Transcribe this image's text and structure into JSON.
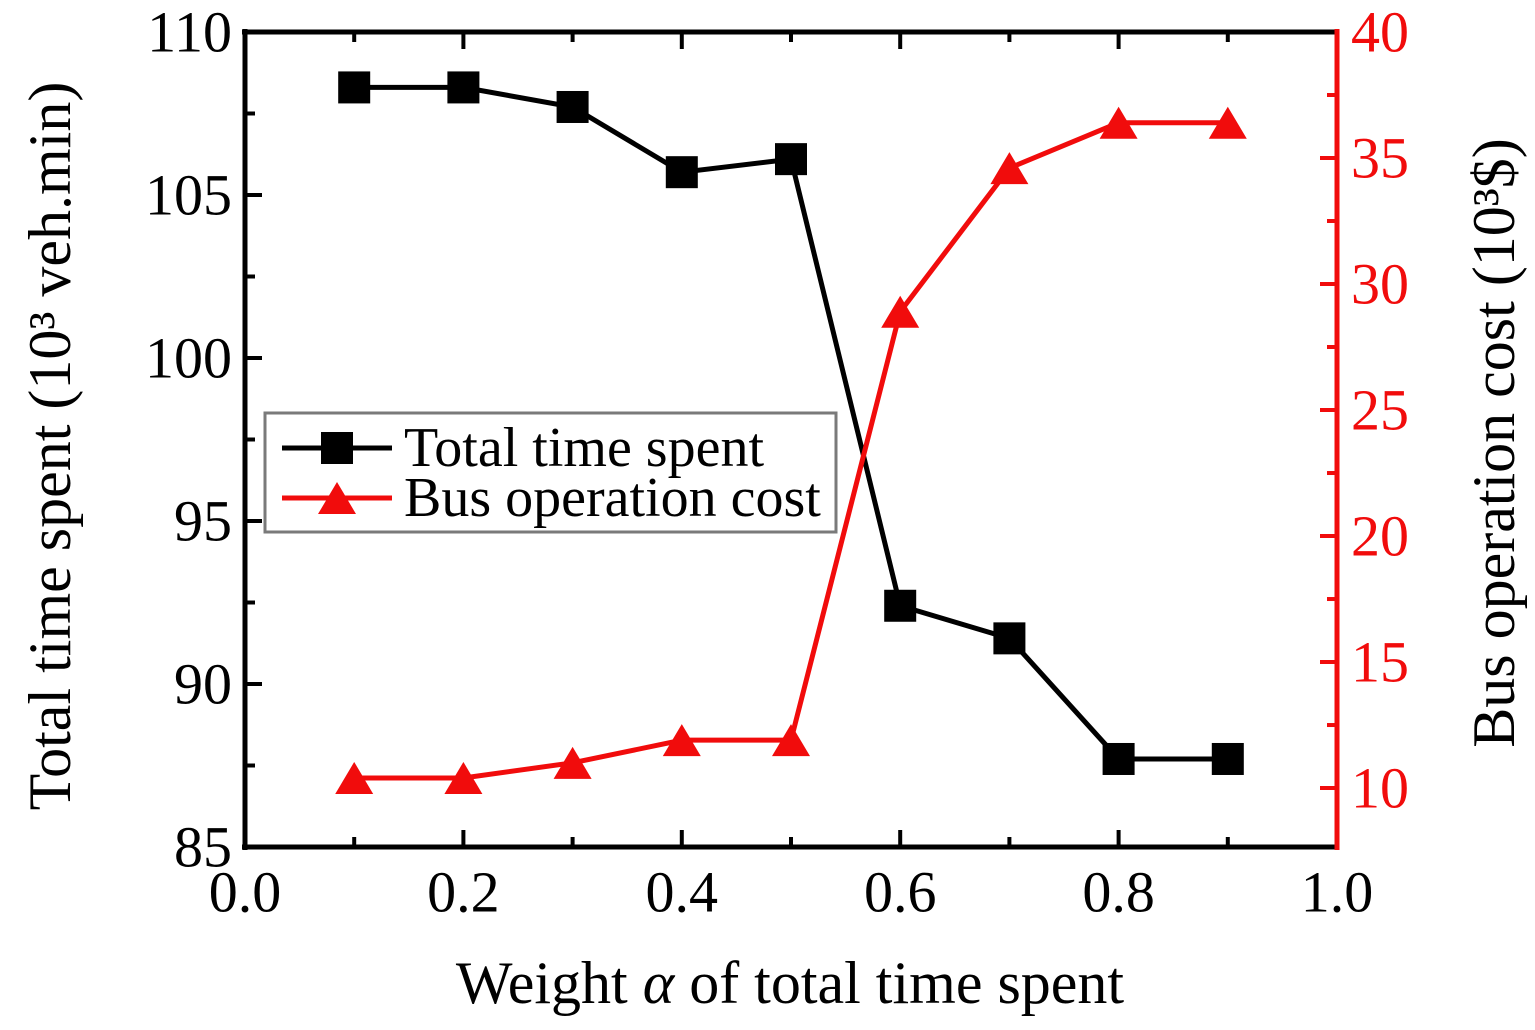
{
  "figure": {
    "background": "#ffffff",
    "black": "#000000",
    "red": "#f10c0c",
    "legend_border": "#7a7a7a"
  },
  "chart_data": {
    "type": "line",
    "x": [
      0.1,
      0.2,
      0.3,
      0.4,
      0.5,
      0.6,
      0.7,
      0.8,
      0.9
    ],
    "series": [
      {
        "name": "Total time spent",
        "axis": "left",
        "color": "#000000",
        "marker": "square",
        "values": [
          108.3,
          108.3,
          107.7,
          105.7,
          106.1,
          92.4,
          91.4,
          87.7,
          87.7
        ]
      },
      {
        "name": "Bus operation cost",
        "axis": "right",
        "color": "#f10c0c",
        "marker": "triangle",
        "values": [
          10.4,
          10.4,
          11.0,
          11.9,
          11.9,
          28.9,
          34.6,
          36.4,
          36.4
        ]
      }
    ],
    "axes": {
      "x": {
        "label_prefix": "Weight ",
        "label_alpha": "α",
        "label_suffix": " of total time spent",
        "min": 0.0,
        "max": 1.0,
        "major_ticks": [
          0.0,
          0.2,
          0.4,
          0.6,
          0.8,
          1.0
        ],
        "tick_labels": [
          "0.0",
          "0.2",
          "0.4",
          "0.6",
          "0.8",
          "1.0"
        ],
        "minor_ticks": [
          0.1,
          0.3,
          0.5,
          0.7,
          0.9
        ]
      },
      "y_left": {
        "label": "Total time spent (10³ veh.min)",
        "min": 85,
        "max": 110,
        "major_ticks": [
          85,
          90,
          95,
          100,
          105,
          110
        ],
        "tick_labels": [
          "85",
          "90",
          "95",
          "100",
          "105",
          "110"
        ],
        "minor_ticks": [
          87.5,
          92.5,
          97.5,
          102.5,
          107.5
        ],
        "color": "#000000"
      },
      "y_right": {
        "label": "Bus operation cost (10³$)",
        "min": 7.66,
        "max": 40,
        "major_ticks": [
          10,
          15,
          20,
          25,
          30,
          35,
          40
        ],
        "tick_labels": [
          "10",
          "15",
          "20",
          "25",
          "30",
          "35",
          "40"
        ],
        "minor_ticks": [
          12.5,
          17.5,
          22.5,
          27.5,
          32.5,
          37.5
        ],
        "color": "#f10c0c"
      }
    },
    "legend": {
      "position": "left-center",
      "items": [
        {
          "label": "Total time spent"
        },
        {
          "label": "Bus operation cost"
        }
      ]
    },
    "grid": false
  }
}
